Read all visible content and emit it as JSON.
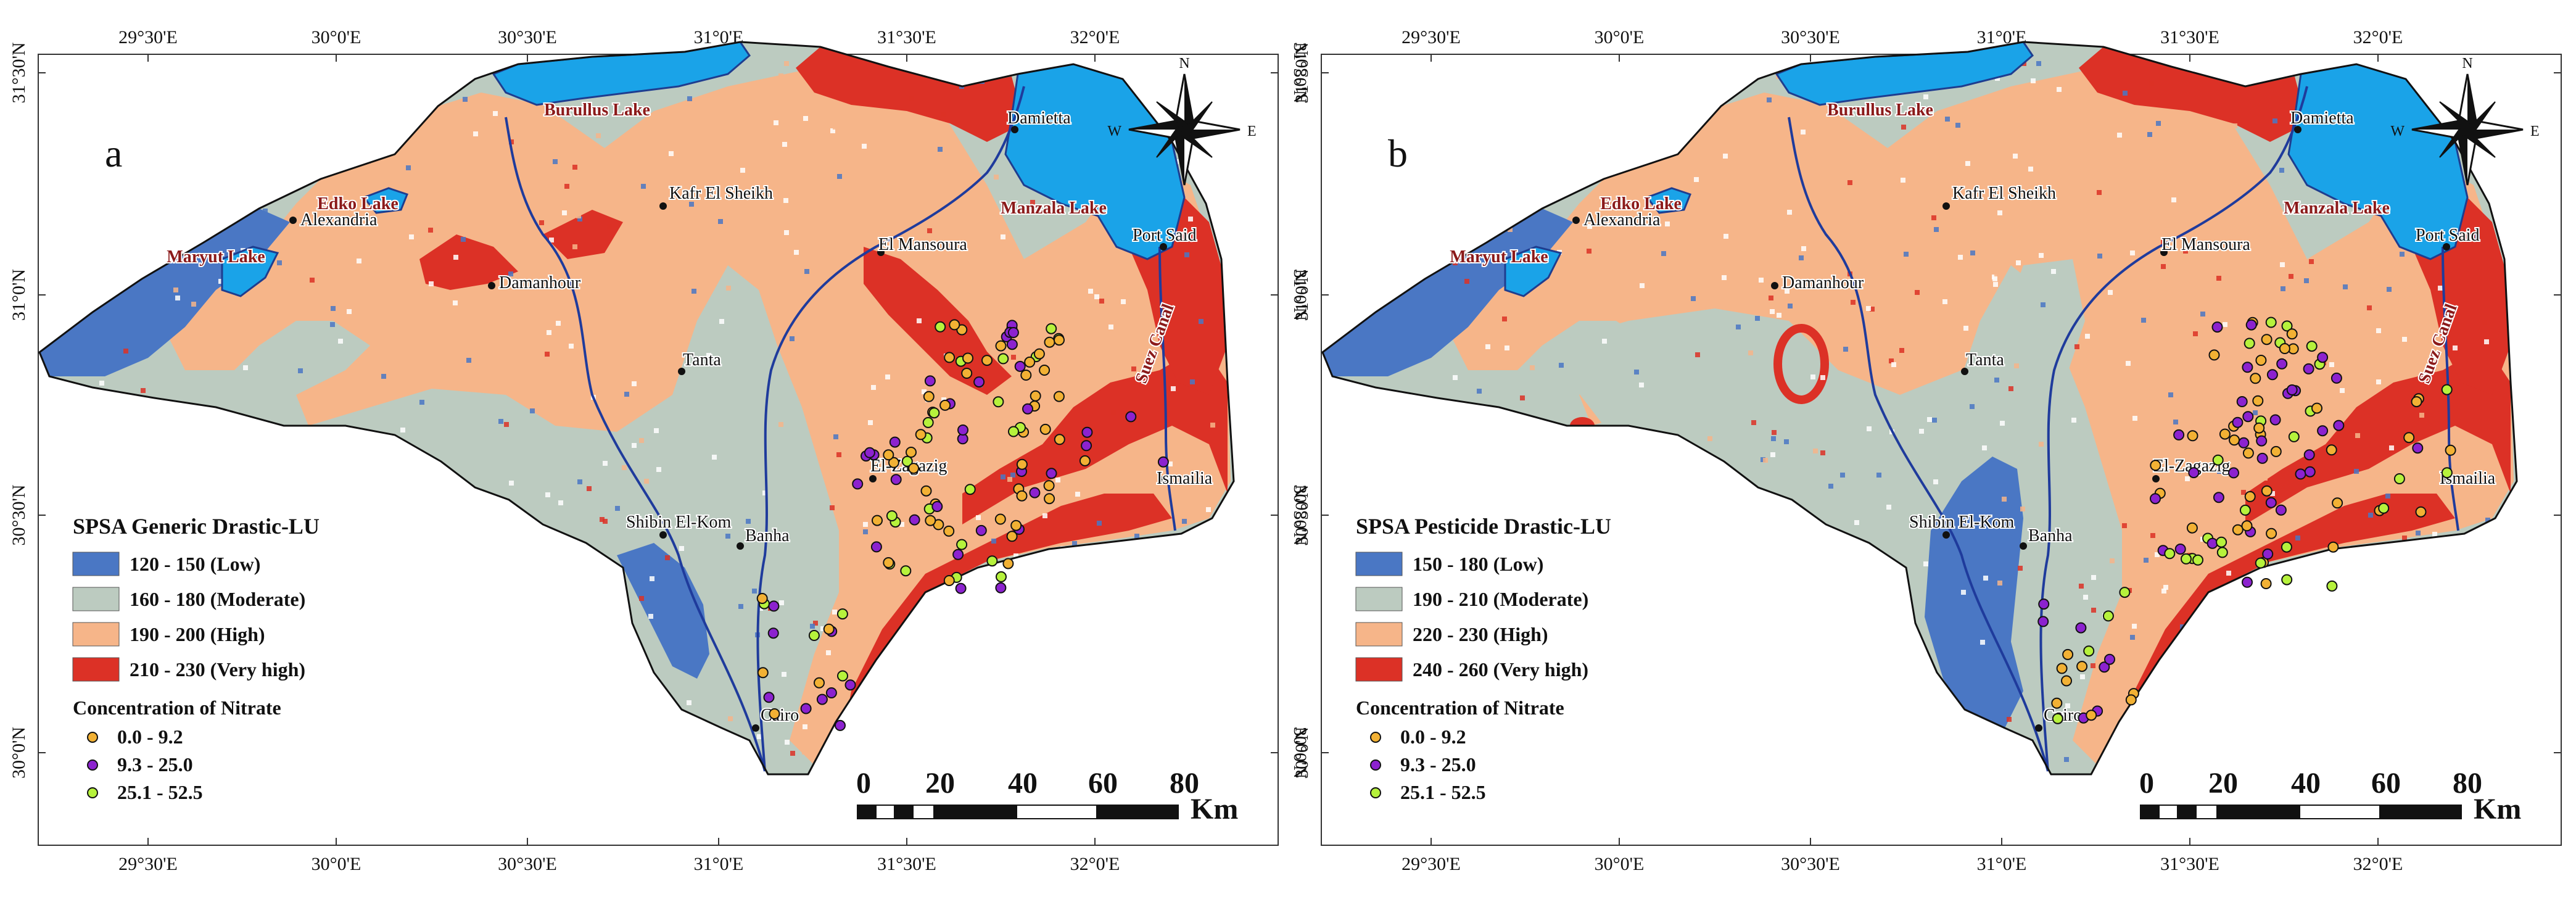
{
  "maps": [
    {
      "panel_letter": "a",
      "legend_title": "SPSA Generic Drastic-LU",
      "classes": [
        {
          "label": "120 - 150 (Low)",
          "color": "#4a77c4"
        },
        {
          "label": "160 - 180 (Moderate)",
          "color": "#bccbc0"
        },
        {
          "label": "190 - 200 (High)",
          "color": "#f6b589"
        },
        {
          "label": "210 - 230 (Very high)",
          "color": "#dc3126"
        }
      ]
    },
    {
      "panel_letter": "b",
      "legend_title": "SPSA Pesticide Drastic-LU",
      "classes": [
        {
          "label": "150 - 180 (Low)",
          "color": "#4a77c4"
        },
        {
          "label": "190 - 210 (Moderate)",
          "color": "#bccbc0"
        },
        {
          "label": "220 - 230 (High)",
          "color": "#f6b589"
        },
        {
          "label": "240 - 260 (Very high)",
          "color": "#dc3126"
        }
      ]
    }
  ],
  "nitrate": {
    "title": "Concentration of Nitrate",
    "classes": [
      {
        "label": "0.0 - 9.2",
        "color": "#f2b134"
      },
      {
        "label": "9.3 - 25.0",
        "color": "#8c22cf"
      },
      {
        "label": "25.1 - 52.5",
        "color": "#b6f23c"
      }
    ]
  },
  "graticule": {
    "lon_labels": [
      "29°30'E",
      "30°0'E",
      "30°30'E",
      "31°0'E",
      "31°30'E",
      "32°0'E"
    ],
    "lat_labels": [
      "31°30'N",
      "31°0'N",
      "30°30'N",
      "30°0'N"
    ]
  },
  "scale_bar": {
    "ticks": [
      "0",
      "20",
      "40",
      "60",
      "80"
    ],
    "unit": "Km"
  },
  "north_arrow": {
    "n": "N",
    "e": "E",
    "w": "W"
  },
  "water_labels": [
    "Burullus Lake",
    "Edko Lake",
    "Maryut Lake",
    "Manzala Lake",
    "Suez Canal"
  ],
  "cities": [
    "Alexandria",
    "Damanhour",
    "Kafr El Sheikh",
    "Tanta",
    "Damietta",
    "El Mansoura",
    "Port Said",
    "El-Zagazig",
    "Ismailia",
    "Shibin El-Kom",
    "Banha",
    "Cairo"
  ]
}
